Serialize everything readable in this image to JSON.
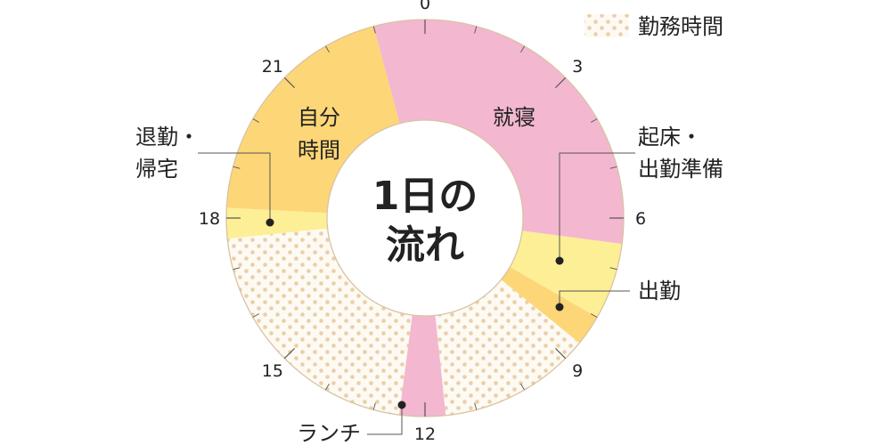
{
  "chart_data": {
    "type": "donut",
    "unit": "hour",
    "center_label": [
      "1日の",
      "流れ"
    ],
    "hour_ticks": [
      "0",
      "3",
      "6",
      "9",
      "12",
      "15",
      "18",
      "21"
    ],
    "legend": [
      {
        "label": "勤務時間",
        "pattern": "dots"
      }
    ],
    "segments": [
      {
        "label": "就寝",
        "start": 23.0,
        "end": 6.5,
        "color": "#f3b7d0",
        "pattern": "none"
      },
      {
        "label": "起床・出勤準備",
        "start": 6.5,
        "end": 8.0,
        "color": "#fdef95",
        "pattern": "none"
      },
      {
        "label": "出勤",
        "start": 8.0,
        "end": 8.6,
        "color": "#fdd677",
        "pattern": "none"
      },
      {
        "label": "勤務時間",
        "start": 8.6,
        "end": 11.6,
        "color": "#fdfaf3",
        "pattern": "dots"
      },
      {
        "label": "ランチ",
        "start": 11.6,
        "end": 12.5,
        "color": "#f3b7d0",
        "pattern": "none"
      },
      {
        "label": "勤務時間",
        "start": 12.5,
        "end": 17.6,
        "color": "#fdfaf3",
        "pattern": "dots"
      },
      {
        "label": "退勤・帰宅",
        "start": 17.6,
        "end": 18.2,
        "color": "#fdef95",
        "pattern": "none"
      },
      {
        "label": "自分時間",
        "start": 18.2,
        "end": 23.0,
        "color": "#fdd677",
        "pattern": "none"
      }
    ],
    "labels": {
      "sleep": "就寝",
      "own_time": [
        "自分",
        "時間"
      ],
      "wake_prep": [
        "起床・",
        "出勤準備"
      ],
      "commute": "出勤",
      "lunch": "ランチ",
      "return_home": [
        "退勤・",
        "帰宅"
      ],
      "legend_work": "勤務時間"
    }
  }
}
